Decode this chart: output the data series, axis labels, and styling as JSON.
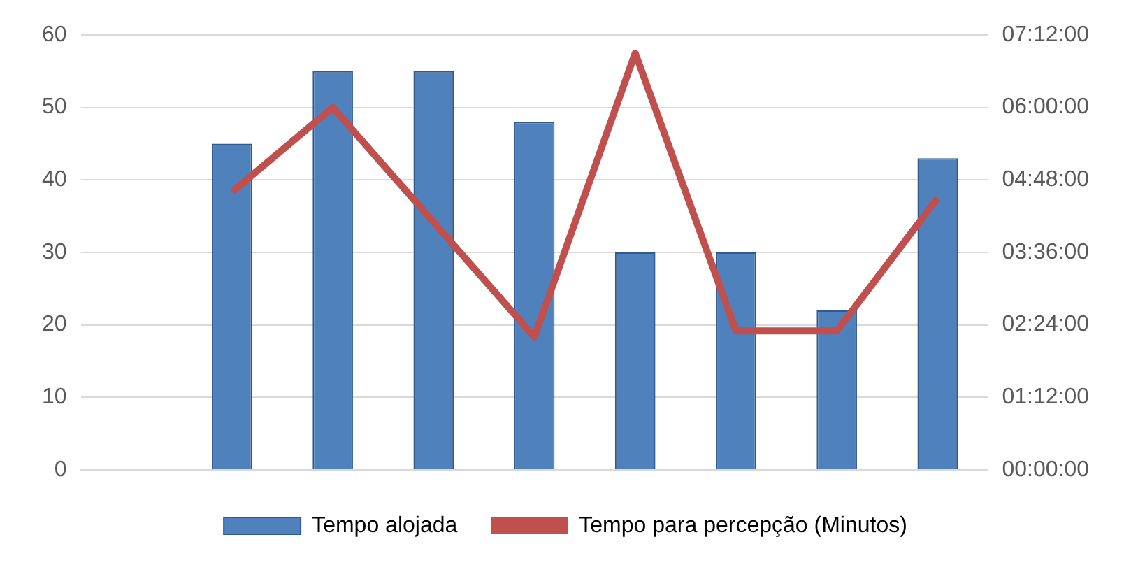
{
  "chart_data": {
    "type": "bar",
    "categories": [
      null,
      null,
      null,
      null,
      null,
      null,
      null,
      null,
      null
    ],
    "series": [
      {
        "name": "Tempo alojada",
        "color": "#4f81bd",
        "values": [
          null,
          45,
          55,
          55,
          48,
          30,
          30,
          22,
          43
        ]
      },
      {
        "name": "Tempo para percepção (Minutos)",
        "type": "line",
        "axis": "y2",
        "color": "#c0504d",
        "values": [
          null,
          4.6,
          6.0,
          4.1,
          2.2,
          6.9,
          2.3,
          2.3,
          4.5
        ]
      }
    ],
    "ylim": [
      0,
      60
    ],
    "yticks": [
      0,
      10,
      20,
      30,
      40,
      50,
      60
    ],
    "y2lim": [
      0,
      7.2
    ],
    "y2ticks": [
      {
        "value": 0,
        "label": "00:00:00"
      },
      {
        "value": 1.2,
        "label": "01:12:00"
      },
      {
        "value": 2.4,
        "label": "02:24:00"
      },
      {
        "value": 3.6,
        "label": "03:36:00"
      },
      {
        "value": 4.8,
        "label": "04:48:00"
      },
      {
        "value": 6.0,
        "label": "06:00:00"
      },
      {
        "value": 7.2,
        "label": "07:12:00"
      }
    ],
    "grid": "y",
    "legend": "bottom",
    "marker": "none",
    "line_style": "solid"
  }
}
